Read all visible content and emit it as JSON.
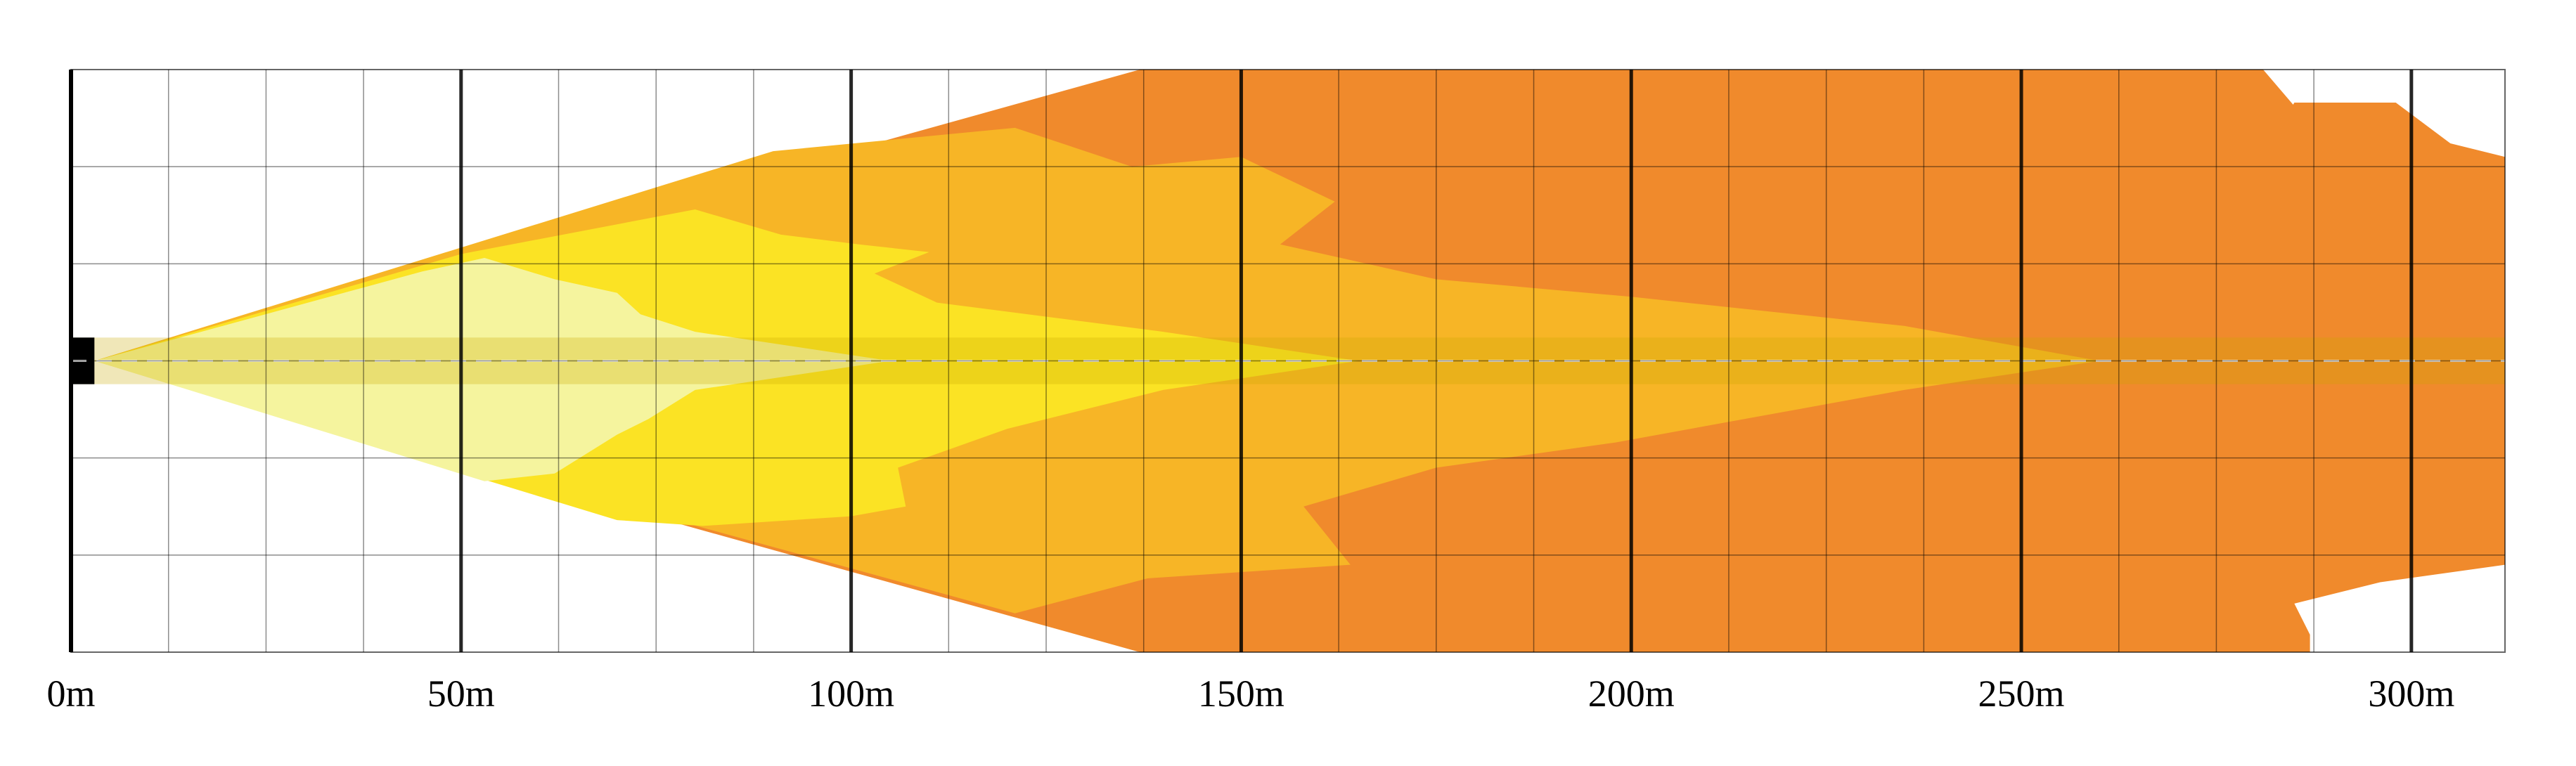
{
  "chart_data": {
    "type": "area",
    "title": "",
    "xlabel": "",
    "ylabel": "",
    "x_unit": "m",
    "xlim": [
      0,
      312
    ],
    "ylim": [
      -1.5,
      1.5
    ],
    "x_ticks": [
      0,
      50,
      100,
      150,
      200,
      250,
      300
    ],
    "x_tick_labels": [
      "0m",
      "50m",
      "100m",
      "150m",
      "200m",
      "250m",
      "300m"
    ],
    "minor_grid_step_x": 12.5,
    "grid_rows": 6,
    "grid": true,
    "legend": "none",
    "centerline_color": "#ffffff",
    "zones": [
      {
        "color": "#f08a2c",
        "outline": [
          [
            3,
            0.0
          ],
          [
            137,
            -1.5
          ],
          [
            287,
            -1.5
          ],
          [
            287,
            -1.41
          ],
          [
            285,
            -1.25
          ],
          [
            296,
            -1.14
          ],
          [
            312,
            -1.05
          ],
          [
            312,
            1.05
          ],
          [
            305,
            1.12
          ],
          [
            298,
            1.33
          ],
          [
            285,
            1.33
          ],
          [
            282,
            1.13
          ],
          [
            291,
            1.03
          ],
          [
            281,
            1.5
          ],
          [
            137,
            1.5
          ]
        ]
      },
      {
        "color": "#f7b526",
        "outline": [
          [
            3,
            0.0
          ],
          [
            121,
            -1.3
          ],
          [
            138,
            -1.12
          ],
          [
            164,
            -1.05
          ],
          [
            158,
            -0.75
          ],
          [
            175,
            -0.55
          ],
          [
            198,
            -0.42
          ],
          [
            235,
            -0.15
          ],
          [
            260,
            0.0
          ],
          [
            235,
            0.18
          ],
          [
            200,
            0.33
          ],
          [
            175,
            0.42
          ],
          [
            155,
            0.6
          ],
          [
            162,
            0.82
          ],
          [
            150,
            1.05
          ],
          [
            136,
            1.0
          ],
          [
            121,
            1.2
          ],
          [
            90,
            1.08
          ]
        ]
      },
      {
        "color": "#fbe324",
        "outline": [
          [
            3,
            0.0
          ],
          [
            70,
            -0.82
          ],
          [
            81,
            -0.85
          ],
          [
            100,
            -0.8
          ],
          [
            107,
            -0.75
          ],
          [
            106,
            -0.55
          ],
          [
            120,
            -0.35
          ],
          [
            140,
            -0.15
          ],
          [
            165,
            0.0
          ],
          [
            140,
            0.15
          ],
          [
            111,
            0.3
          ],
          [
            103,
            0.45
          ],
          [
            110,
            0.56
          ],
          [
            101,
            0.6
          ],
          [
            91,
            0.65
          ],
          [
            80,
            0.78
          ],
          [
            50,
            0.55
          ]
        ]
      },
      {
        "color": "#f5f49e",
        "outline": [
          [
            3,
            0.0
          ],
          [
            45,
            -0.52
          ],
          [
            53,
            -0.62
          ],
          [
            62,
            -0.58
          ],
          [
            70,
            -0.38
          ],
          [
            74,
            -0.3
          ],
          [
            80,
            -0.15
          ],
          [
            105,
            0.0
          ],
          [
            80,
            0.15
          ],
          [
            73,
            0.24
          ],
          [
            70,
            0.35
          ],
          [
            62,
            0.42
          ],
          [
            53,
            0.53
          ],
          [
            45,
            0.46
          ]
        ]
      }
    ],
    "center_band": {
      "half_width": 0.12,
      "overlay_color": "#c8a800",
      "overlay_opacity": 0.28,
      "left_color": "#000000",
      "left_end": 3
    }
  }
}
